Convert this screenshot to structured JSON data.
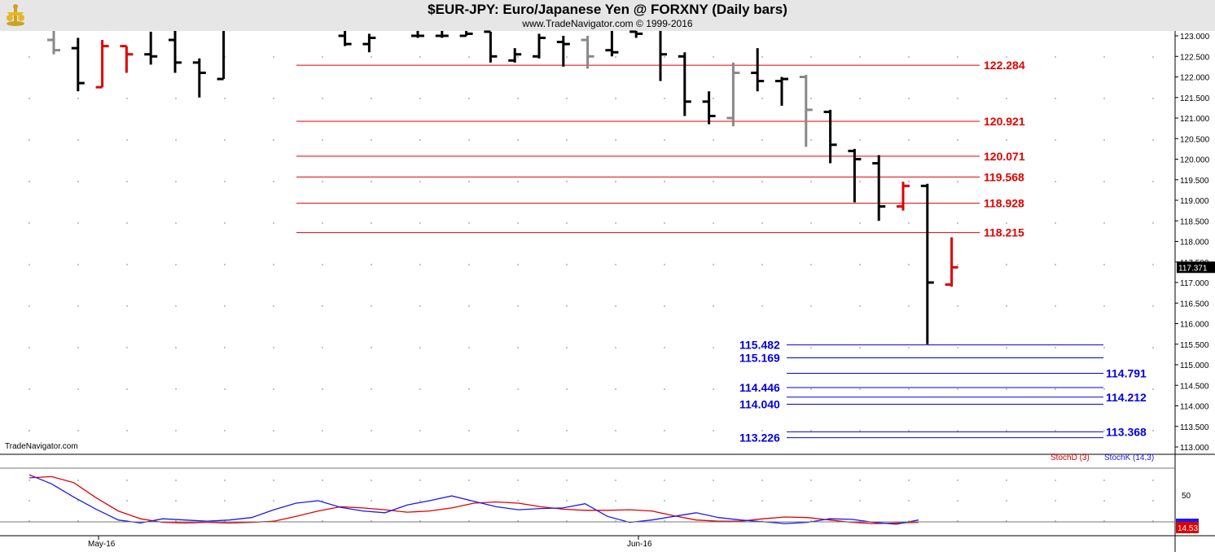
{
  "header": {
    "title": "$EUR-JPY:  Euro/Japanese Yen @ FORXNY  (Daily bars)",
    "copyright": "www.TradeNavigator.com © 1999-2016",
    "watermark": "TradeNavigator.com",
    "logo_icon": "trade-navigator-logo-icon"
  },
  "chart_data": [
    {
      "type": "ohlc",
      "ylim": [
        113.0,
        123.0
      ],
      "y_ticks": [
        "123.000",
        "122.500",
        "122.000",
        "121.500",
        "121.000",
        "120.500",
        "120.000",
        "119.500",
        "119.000",
        "118.500",
        "118.000",
        "117.500",
        "117.000",
        "116.500",
        "116.000",
        "115.500",
        "115.000",
        "114.500",
        "114.000",
        "113.500",
        "113.000"
      ],
      "x_labels": [
        "May-16",
        "Jun-16"
      ],
      "last_price": "117.371",
      "bars": [
        {
          "o": 122.9,
          "h": 123.2,
          "l": 122.55,
          "c": 122.65,
          "color": "#888888"
        },
        {
          "o": 122.7,
          "h": 122.95,
          "l": 121.65,
          "c": 121.85,
          "color": "#000000"
        },
        {
          "o": 121.75,
          "h": 122.9,
          "l": 121.75,
          "c": 122.75,
          "color": "#e00000"
        },
        {
          "o": 122.75,
          "h": 122.75,
          "l": 122.1,
          "c": 122.55,
          "color": "#e00000"
        },
        {
          "o": 122.55,
          "h": 123.1,
          "l": 122.3,
          "c": 122.5,
          "color": "#000000"
        },
        {
          "o": 122.9,
          "h": 123.2,
          "l": 122.1,
          "c": 122.35,
          "color": "#000000"
        },
        {
          "o": 122.35,
          "h": 122.45,
          "l": 121.5,
          "c": 122.1,
          "color": "#000000"
        },
        {
          "o": 121.95,
          "h": 123.2,
          "l": 121.95,
          "c": 123.2,
          "color": "#000000"
        },
        {
          "o": null,
          "h": null,
          "l": null,
          "c": null,
          "color": "#000000"
        },
        {
          "o": null,
          "h": null,
          "l": null,
          "c": null,
          "color": "#000000"
        },
        {
          "o": null,
          "h": null,
          "l": null,
          "c": null,
          "color": "#000000"
        },
        {
          "o": null,
          "h": null,
          "l": null,
          "c": null,
          "color": "#000000"
        },
        {
          "o": 123.0,
          "h": 123.2,
          "l": 122.75,
          "c": 122.8,
          "color": "#000000"
        },
        {
          "o": 122.8,
          "h": 123.05,
          "l": 122.6,
          "c": 122.95,
          "color": "#000000"
        },
        {
          "o": null,
          "h": null,
          "l": null,
          "c": null,
          "color": "#000000"
        },
        {
          "o": 123.0,
          "h": 123.2,
          "l": 122.95,
          "c": 123.0,
          "color": "#000000"
        },
        {
          "o": 123.0,
          "h": 123.2,
          "l": 122.95,
          "c": 123.0,
          "color": "#000000"
        },
        {
          "o": 123.0,
          "h": 123.2,
          "l": 123.0,
          "c": 123.05,
          "color": "#000000"
        },
        {
          "o": 123.1,
          "h": 123.1,
          "l": 122.35,
          "c": 122.5,
          "color": "#000000"
        },
        {
          "o": 122.4,
          "h": 122.7,
          "l": 122.35,
          "c": 122.55,
          "color": "#000000"
        },
        {
          "o": 122.5,
          "h": 123.05,
          "l": 122.45,
          "c": 122.95,
          "color": "#000000"
        },
        {
          "o": 122.85,
          "h": 123.0,
          "l": 122.25,
          "c": 122.8,
          "color": "#000000"
        },
        {
          "o": 122.9,
          "h": 123.0,
          "l": 122.2,
          "c": 122.5,
          "color": "#888888"
        },
        {
          "o": 122.65,
          "h": 123.2,
          "l": 122.5,
          "c": 122.6,
          "color": "#000000"
        },
        {
          "o": 123.1,
          "h": 123.2,
          "l": 122.95,
          "c": 123.05,
          "color": "#000000"
        },
        {
          "o": 123.2,
          "h": 123.2,
          "l": 121.9,
          "c": 122.55,
          "color": "#000000"
        },
        {
          "o": 122.5,
          "h": 122.6,
          "l": 121.05,
          "c": 121.4,
          "color": "#000000"
        },
        {
          "o": 121.4,
          "h": 121.65,
          "l": 120.85,
          "c": 121.05,
          "color": "#000000"
        },
        {
          "o": 121.0,
          "h": 122.35,
          "l": 120.8,
          "c": 122.1,
          "color": "#888888"
        },
        {
          "o": 122.1,
          "h": 122.7,
          "l": 121.65,
          "c": 121.9,
          "color": "#000000"
        },
        {
          "o": 121.9,
          "h": 122.0,
          "l": 121.3,
          "c": 121.95,
          "color": "#000000"
        },
        {
          "o": 122.0,
          "h": 122.05,
          "l": 120.3,
          "c": 121.2,
          "color": "#888888"
        },
        {
          "o": 121.15,
          "h": 121.2,
          "l": 119.9,
          "c": 120.35,
          "color": "#000000"
        },
        {
          "o": 120.2,
          "h": 120.25,
          "l": 118.95,
          "c": 120.0,
          "color": "#000000"
        },
        {
          "o": 119.9,
          "h": 120.1,
          "l": 118.5,
          "c": 118.85,
          "color": "#000000"
        },
        {
          "o": 118.85,
          "h": 119.45,
          "l": 118.75,
          "c": 119.35,
          "color": "#e00000"
        },
        {
          "o": 119.35,
          "h": 119.4,
          "l": 115.5,
          "c": 117.0,
          "color": "#000000"
        },
        {
          "o": 116.95,
          "h": 118.1,
          "l": 116.9,
          "c": 117.37,
          "color": "#e00000"
        }
      ],
      "levels_red": [
        "122.284",
        "120.921",
        "120.071",
        "119.568",
        "118.928",
        "118.215"
      ],
      "levels_blue_left": [
        "115.482",
        "115.169",
        "114.446",
        "114.040",
        "113.226"
      ],
      "levels_blue_right": [
        "114.791",
        "114.212",
        "113.368"
      ]
    },
    {
      "type": "line",
      "ylim": [
        0,
        100
      ],
      "y_ticks": [
        "50"
      ],
      "legend": [
        "StochD (3)",
        "StochK (14,3)"
      ],
      "last_value": "14.53",
      "series": [
        {
          "name": "StochD (3)",
          "color": "#e00000",
          "values": [
            88,
            90,
            80,
            55,
            33,
            20,
            14,
            13,
            14,
            13,
            14,
            16,
            24,
            33,
            40,
            38,
            35,
            31,
            33,
            38,
            46,
            48,
            46,
            40,
            36,
            34,
            34,
            35,
            33,
            25,
            18,
            16,
            16,
            20,
            23,
            22,
            18,
            14,
            12,
            13,
            14
          ]
        },
        {
          "name": "StochK (14,3)",
          "color": "#1a1aee",
          "values": [
            93,
            78,
            56,
            36,
            18,
            13,
            20,
            18,
            16,
            18,
            22,
            35,
            46,
            50,
            39,
            33,
            30,
            43,
            50,
            58,
            49,
            40,
            35,
            37,
            38,
            45,
            24,
            14,
            18,
            24,
            30,
            22,
            18,
            15,
            12,
            14,
            20,
            19,
            14,
            11,
            18
          ]
        }
      ]
    }
  ]
}
